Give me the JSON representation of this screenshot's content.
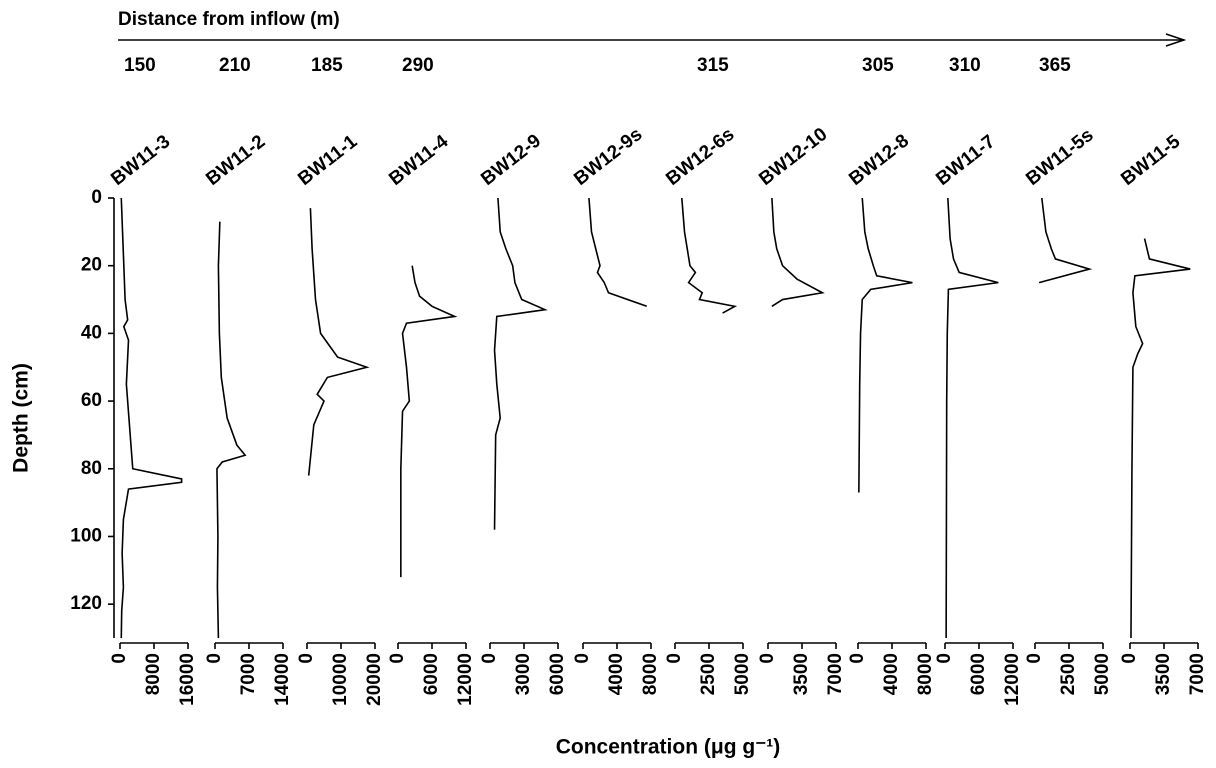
{
  "figure": {
    "title": "Distance from inflow (m)",
    "ylabel": "Depth (cm)",
    "xlabel": "Concentration (μg g⁻¹)"
  },
  "chart_data": [
    {
      "type": "line",
      "title": "BW11-3",
      "distance": "150",
      "xlim": [
        0,
        16000
      ],
      "xticks": [
        0,
        8000,
        16000
      ],
      "ylim": [
        0,
        130
      ],
      "yticks": [
        0,
        20,
        40,
        60,
        80,
        100,
        120
      ],
      "x": [
        300,
        600,
        900,
        1200,
        1800,
        900,
        2000,
        1500,
        3000,
        14500,
        14500,
        2000,
        800,
        500,
        800,
        400,
        300
      ],
      "values": [
        0,
        10,
        20,
        30,
        36,
        38,
        42,
        55,
        80,
        83,
        84,
        86,
        95,
        105,
        115,
        122,
        130
      ]
    },
    {
      "type": "line",
      "title": "BW11-2",
      "distance": "210",
      "xlim": [
        0,
        14000
      ],
      "xticks": [
        0,
        7000,
        14000
      ],
      "ylim": [
        0,
        130
      ],
      "x": [
        1000,
        700,
        900,
        1300,
        2500,
        4500,
        6200,
        1500,
        400,
        600,
        500,
        700
      ],
      "values": [
        7,
        20,
        40,
        53,
        65,
        73,
        76,
        78,
        80,
        100,
        115,
        130
      ]
    },
    {
      "type": "line",
      "title": "BW11-1",
      "distance": "185",
      "xlim": [
        0,
        20000
      ],
      "xticks": [
        0,
        10000,
        20000
      ],
      "ylim": [
        0,
        130
      ],
      "x": [
        1000,
        1500,
        2500,
        4000,
        9000,
        17600,
        6000,
        3000,
        5000,
        2000,
        1200,
        500
      ],
      "values": [
        3,
        15,
        30,
        40,
        47,
        50,
        53,
        58,
        60,
        67,
        75,
        82
      ]
    },
    {
      "type": "line",
      "title": "BW11-4",
      "distance": "290",
      "xlim": [
        0,
        12000
      ],
      "xticks": [
        0,
        6000,
        12000
      ],
      "ylim": [
        0,
        130
      ],
      "x": [
        2500,
        3000,
        3800,
        6000,
        10000,
        1500,
        800,
        1500,
        2000,
        800,
        500,
        500
      ],
      "values": [
        20,
        25,
        29,
        32,
        35,
        37,
        40,
        50,
        60,
        63,
        80,
        112
      ]
    },
    {
      "type": "line",
      "title": "BW12-9",
      "xlim": [
        0,
        6000
      ],
      "xticks": [
        0,
        3000,
        6000
      ],
      "ylim": [
        0,
        130
      ],
      "x": [
        700,
        900,
        1400,
        2000,
        2200,
        2800,
        4850,
        600,
        400,
        600,
        900,
        500,
        400
      ],
      "values": [
        0,
        10,
        15,
        20,
        25,
        30,
        33,
        35,
        45,
        55,
        65,
        70,
        98
      ]
    },
    {
      "type": "line",
      "title": "BW12-9s",
      "xlim": [
        0,
        8000
      ],
      "xticks": [
        0,
        4000,
        8000
      ],
      "ylim": [
        0,
        130
      ],
      "x": [
        700,
        1000,
        1500,
        2000,
        1700,
        2500,
        3000,
        7500
      ],
      "values": [
        0,
        10,
        15,
        20,
        22,
        25,
        28,
        32
      ]
    },
    {
      "type": "line",
      "title": "BW12-6s",
      "distance": "315",
      "xlim": [
        0,
        5000
      ],
      "xticks": [
        0,
        2500,
        5000
      ],
      "ylim": [
        0,
        130
      ],
      "x": [
        500,
        700,
        900,
        1100,
        1500,
        1000,
        2000,
        1800,
        4400,
        3500
      ],
      "values": [
        0,
        10,
        15,
        20,
        22,
        25,
        28,
        30,
        32,
        34
      ]
    },
    {
      "type": "line",
      "title": "BW12-10",
      "xlim": [
        0,
        7000
      ],
      "xticks": [
        0,
        3500,
        7000
      ],
      "ylim": [
        0,
        130
      ],
      "x": [
        400,
        600,
        900,
        1500,
        3000,
        5600,
        1500,
        400
      ],
      "values": [
        0,
        10,
        15,
        20,
        24,
        28,
        30,
        32
      ]
    },
    {
      "type": "line",
      "title": "BW12-8",
      "distance": "305",
      "xlim": [
        0,
        8000
      ],
      "xticks": [
        0,
        4000,
        8000
      ],
      "ylim": [
        0,
        130
      ],
      "x": [
        500,
        800,
        1200,
        1800,
        2200,
        6400,
        1500,
        500,
        300,
        200,
        100
      ],
      "values": [
        0,
        10,
        15,
        20,
        23,
        25,
        27,
        30,
        40,
        55,
        87
      ]
    },
    {
      "type": "line",
      "title": "BW11-7",
      "distance": "310",
      "xlim": [
        0,
        12000
      ],
      "xticks": [
        0,
        6000,
        12000
      ],
      "ylim": [
        0,
        130
      ],
      "x": [
        500,
        900,
        1500,
        2500,
        9400,
        600,
        400,
        300,
        200
      ],
      "values": [
        0,
        12,
        18,
        22,
        25,
        27,
        40,
        60,
        130
      ]
    },
    {
      "type": "line",
      "title": "BW11-5s",
      "distance": "365",
      "xlim": [
        0,
        5000
      ],
      "xticks": [
        0,
        2500,
        5000
      ],
      "ylim": [
        0,
        130
      ],
      "x": [
        500,
        800,
        1200,
        1500,
        4000,
        300
      ],
      "values": [
        0,
        10,
        15,
        18,
        21,
        25
      ]
    },
    {
      "type": "line",
      "title": "BW11-5",
      "xlim": [
        0,
        7000
      ],
      "xticks": [
        0,
        3500,
        7000
      ],
      "ylim": [
        0,
        130
      ],
      "x": [
        1500,
        2000,
        6200,
        500,
        300,
        600,
        1300,
        800,
        300,
        200,
        100
      ],
      "values": [
        12,
        18,
        21,
        23,
        28,
        38,
        43,
        46,
        50,
        80,
        130
      ]
    }
  ]
}
